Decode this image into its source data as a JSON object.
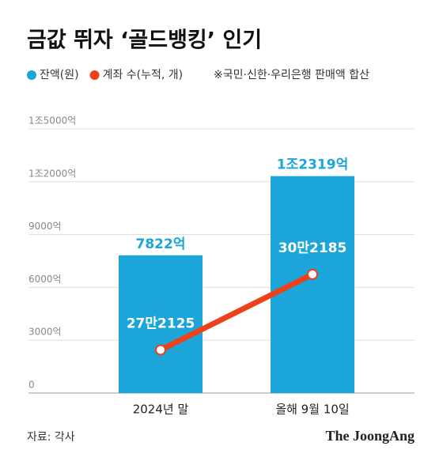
{
  "chart_data": {
    "type": "bar_line",
    "title": "금값 뛰자 ‘골드뱅킹’ 인기",
    "note": "※국민·신한·우리은행 판매액 합산",
    "source": "자료: 각사",
    "brand": "The JoongAng",
    "categories": [
      "2024년 말",
      "올해 9월 10일"
    ],
    "series": [
      {
        "name": "잔액(원)",
        "type": "bar",
        "color": "#1ba5d8",
        "values": [
          7822,
          12319
        ],
        "value_labels": [
          "7822억",
          "1조2319억"
        ]
      },
      {
        "name": "계좌 수(누적, 개)",
        "type": "line",
        "axis": "y2",
        "color": "#ee4019",
        "values": [
          272125,
          302185
        ],
        "value_labels": [
          "27만2125",
          "30만2185"
        ]
      }
    ],
    "ylim": [
      0,
      15000
    ],
    "yticks": [
      {
        "value": 0,
        "label": "0"
      },
      {
        "value": 3000,
        "label": "3000억"
      },
      {
        "value": 6000,
        "label": "6000억"
      },
      {
        "value": 9000,
        "label": "9000억"
      },
      {
        "value": 12000,
        "label": "1조2000억"
      },
      {
        "value": 15000,
        "label": "1조5000억"
      }
    ],
    "y2lim": [
      255000,
      360000
    ],
    "grid": true
  }
}
